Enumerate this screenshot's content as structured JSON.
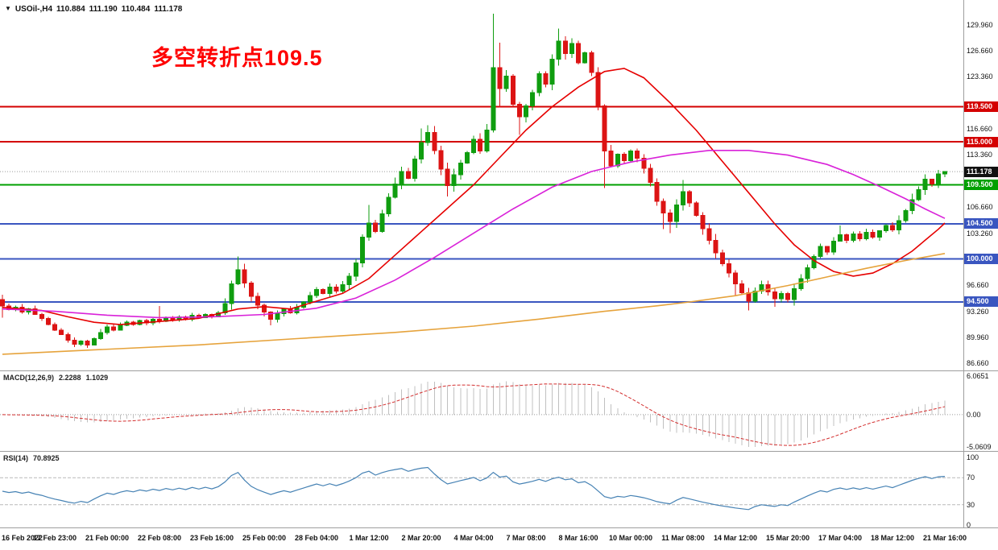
{
  "header": {
    "dropdown_icon": "▼",
    "symbol": "USOil-,H4",
    "open": "110.884",
    "high": "111.190",
    "low": "110.484",
    "close": "111.178"
  },
  "annotation": {
    "text": "多空转折点109.5",
    "color": "#ff0000"
  },
  "colors": {
    "candle_up": "#0f9d0f",
    "candle_down": "#dc1414",
    "separator": "#9e9e9e",
    "current_price_line": "#9a9a9a"
  },
  "chart_data": {
    "type": "candlestick",
    "symbol": "USOil-",
    "timeframe": "H4",
    "title": "USOil-,H4 110.884 111.190 110.484 111.178",
    "first_open": 94.8,
    "closes": [
      94.0,
      93.5,
      93.8,
      93.2,
      93.6,
      92.9,
      92.4,
      91.6,
      90.9,
      90.3,
      89.6,
      89.1,
      89.5,
      89.0,
      89.8,
      90.6,
      91.3,
      90.9,
      91.5,
      91.9,
      91.6,
      92.1,
      91.8,
      92.3,
      92.0,
      92.5,
      92.2,
      92.6,
      92.3,
      92.8,
      92.5,
      92.9,
      92.6,
      93.1,
      94.3,
      96.8,
      98.6,
      96.9,
      95.2,
      94.1,
      93.2,
      92.3,
      93.0,
      93.6,
      93.1,
      93.8,
      94.5,
      95.3,
      96.1,
      95.6,
      96.4,
      95.9,
      96.7,
      97.8,
      99.5,
      102.8,
      104.6,
      103.5,
      105.8,
      107.9,
      109.6,
      111.2,
      110.3,
      112.8,
      114.9,
      116.2,
      113.9,
      111.5,
      109.4,
      110.8,
      112.3,
      113.6,
      115.3,
      113.8,
      116.5,
      124.5,
      121.8,
      123.4,
      119.8,
      118.2,
      119.6,
      121.3,
      123.7,
      122.4,
      125.6,
      127.9,
      126.3,
      127.6,
      125.1,
      126.4,
      123.9,
      119.6,
      113.8,
      111.9,
      113.4,
      112.6,
      113.8,
      112.9,
      111.6,
      109.8,
      107.4,
      105.9,
      104.8,
      106.9,
      108.6,
      107.2,
      105.6,
      103.9,
      102.4,
      100.8,
      99.4,
      98.2,
      96.8,
      95.7,
      94.6,
      95.9,
      96.7,
      95.8,
      94.9,
      95.6,
      94.8,
      96.2,
      97.5,
      98.9,
      100.3,
      101.6,
      100.9,
      102.3,
      103.1,
      102.4,
      103.2,
      102.6,
      103.4,
      102.8,
      103.6,
      104.3,
      103.7,
      104.9,
      106.2,
      107.6,
      108.9,
      110.2,
      109.6,
      110.884,
      111.178
    ],
    "wick_overrides": {
      "0": [
        95.4,
        92.5
      ],
      "11": [
        null,
        88.7
      ],
      "13": [
        null,
        88.6
      ],
      "24": [
        94.0,
        null
      ],
      "36": [
        100.3,
        null
      ],
      "41": [
        null,
        91.5
      ],
      "56": [
        106.9,
        null
      ],
      "64": [
        116.7,
        null
      ],
      "65": [
        117.1,
        null
      ],
      "68": [
        null,
        108.0
      ],
      "75": [
        131.4,
        116.2
      ],
      "76": [
        127.7,
        119.4
      ],
      "79": [
        null,
        115.9
      ],
      "85": [
        129.5,
        null
      ],
      "92": [
        null,
        109.1
      ],
      "101": [
        null,
        103.8
      ],
      "102": [
        null,
        103.3
      ],
      "104": [
        110.1,
        null
      ],
      "112": [
        null,
        95.3
      ],
      "114": [
        null,
        93.4
      ],
      "118": [
        null,
        93.9
      ],
      "128": [
        104.3,
        null
      ],
      "144": [
        111.19,
        110.484
      ]
    },
    "hlines": [
      {
        "price": 119.5,
        "label": "119.500",
        "color": "#d40000"
      },
      {
        "price": 115.0,
        "label": "115.000",
        "color": "#d40000"
      },
      {
        "price": 109.5,
        "label": "109.500",
        "color": "#00a000"
      },
      {
        "price": 104.5,
        "label": "104.500",
        "color": "#3a56c0"
      },
      {
        "price": 100.0,
        "label": "100.000",
        "color": "#3a56c0"
      },
      {
        "price": 94.5,
        "label": "94.500",
        "color": "#3a56c0"
      }
    ],
    "current_price": {
      "value": 111.178,
      "label": "111.178",
      "color": "#111111"
    },
    "price_axis_labels": [
      {
        "price": 129.96,
        "label": "129.960"
      },
      {
        "price": 126.66,
        "label": "126.660"
      },
      {
        "price": 123.36,
        "label": "123.360"
      },
      {
        "price": 116.66,
        "label": "116.660"
      },
      {
        "price": 113.36,
        "label": "113.360"
      },
      {
        "price": 106.66,
        "label": "106.660"
      },
      {
        "price": 103.26,
        "label": "103.260"
      },
      {
        "price": 96.66,
        "label": "96.660"
      },
      {
        "price": 93.26,
        "label": "93.260"
      },
      {
        "price": 89.96,
        "label": "89.960"
      },
      {
        "price": 86.66,
        "label": "86.660"
      }
    ],
    "time_axis_labels": [
      "16 Feb 2022",
      "17 Feb 23:00",
      "21 Feb 00:00",
      "22 Feb 08:00",
      "23 Feb 16:00",
      "25 Feb 00:00",
      "28 Feb 04:00",
      "1 Mar 12:00",
      "2 Mar 20:00",
      "4 Mar 04:00",
      "7 Mar 08:00",
      "8 Mar 16:00",
      "10 Mar 00:00",
      "11 Mar 08:00",
      "14 Mar 12:00",
      "15 Mar 20:00",
      "17 Mar 04:00",
      "18 Mar 12:00",
      "21 Mar 16:00"
    ],
    "ma_lines": [
      {
        "name": "ma-fast-red",
        "color": "#e60000",
        "points": [
          [
            0,
            93.8
          ],
          [
            6,
            93.4
          ],
          [
            10,
            92.6
          ],
          [
            14,
            91.9
          ],
          [
            18,
            91.6
          ],
          [
            24,
            92.0
          ],
          [
            30,
            92.4
          ],
          [
            36,
            93.6
          ],
          [
            40,
            93.9
          ],
          [
            44,
            93.6
          ],
          [
            48,
            94.6
          ],
          [
            52,
            95.6
          ],
          [
            56,
            97.5
          ],
          [
            60,
            100.5
          ],
          [
            64,
            103.5
          ],
          [
            68,
            106.5
          ],
          [
            72,
            109.5
          ],
          [
            76,
            113.0
          ],
          [
            80,
            116.5
          ],
          [
            84,
            119.5
          ],
          [
            88,
            122.0
          ],
          [
            92,
            124.0
          ],
          [
            95,
            124.4
          ],
          [
            98,
            123.2
          ],
          [
            102,
            120.0
          ],
          [
            106,
            116.5
          ],
          [
            110,
            112.5
          ],
          [
            114,
            108.5
          ],
          [
            118,
            104.5
          ],
          [
            121,
            101.8
          ],
          [
            124,
            99.8
          ],
          [
            127,
            98.4
          ],
          [
            130,
            97.8
          ],
          [
            133,
            98.2
          ],
          [
            136,
            99.4
          ],
          [
            139,
            101.0
          ],
          [
            141,
            102.4
          ],
          [
            143,
            103.8
          ],
          [
            144,
            104.6
          ]
        ]
      },
      {
        "name": "ma-mid-magenta",
        "color": "#d922d9",
        "points": [
          [
            0,
            93.6
          ],
          [
            8,
            93.3
          ],
          [
            16,
            92.8
          ],
          [
            24,
            92.5
          ],
          [
            32,
            92.6
          ],
          [
            40,
            92.9
          ],
          [
            48,
            93.7
          ],
          [
            54,
            95.0
          ],
          [
            60,
            97.3
          ],
          [
            66,
            100.2
          ],
          [
            72,
            103.3
          ],
          [
            78,
            106.4
          ],
          [
            84,
            109.2
          ],
          [
            90,
            111.2
          ],
          [
            96,
            112.4
          ],
          [
            102,
            113.3
          ],
          [
            108,
            113.9
          ],
          [
            114,
            113.9
          ],
          [
            120,
            113.3
          ],
          [
            126,
            112.1
          ],
          [
            130,
            110.8
          ],
          [
            134,
            109.3
          ],
          [
            138,
            107.7
          ],
          [
            141,
            106.4
          ],
          [
            144,
            105.2
          ]
        ]
      },
      {
        "name": "ma-slow-orange",
        "color": "#e6a33c",
        "points": [
          [
            0,
            87.8
          ],
          [
            15,
            88.4
          ],
          [
            30,
            89.0
          ],
          [
            45,
            89.8
          ],
          [
            60,
            90.6
          ],
          [
            72,
            91.4
          ],
          [
            82,
            92.3
          ],
          [
            92,
            93.3
          ],
          [
            100,
            94.0
          ],
          [
            105,
            94.5
          ],
          [
            112,
            95.3
          ],
          [
            120,
            96.6
          ],
          [
            126,
            97.7
          ],
          [
            132,
            98.8
          ],
          [
            138,
            99.8
          ],
          [
            144,
            100.7
          ]
        ]
      }
    ],
    "macd": {
      "label": "MACD(12,26,9)",
      "value_main": "2.2288",
      "value_signal": "1.1029",
      "fast": 12,
      "slow": 26,
      "signal": 9,
      "hist_color": "#c0c0c0",
      "signal_color": "#d32f2f",
      "scale_labels": [
        {
          "v": 6.0651,
          "label": "6.0651"
        },
        {
          "v": 0,
          "label": "0.00"
        },
        {
          "v": -5.0609,
          "label": "-5.0609"
        }
      ]
    },
    "rsi": {
      "label": "RSI(14)",
      "value": "70.8925",
      "period": 14,
      "line_color": "#4682b4",
      "levels": [
        70,
        30
      ],
      "scale_labels": [
        {
          "v": 100,
          "label": "100"
        },
        {
          "v": 70,
          "label": "70"
        },
        {
          "v": 30,
          "label": "30"
        },
        {
          "v": 0,
          "label": "0"
        }
      ]
    }
  }
}
